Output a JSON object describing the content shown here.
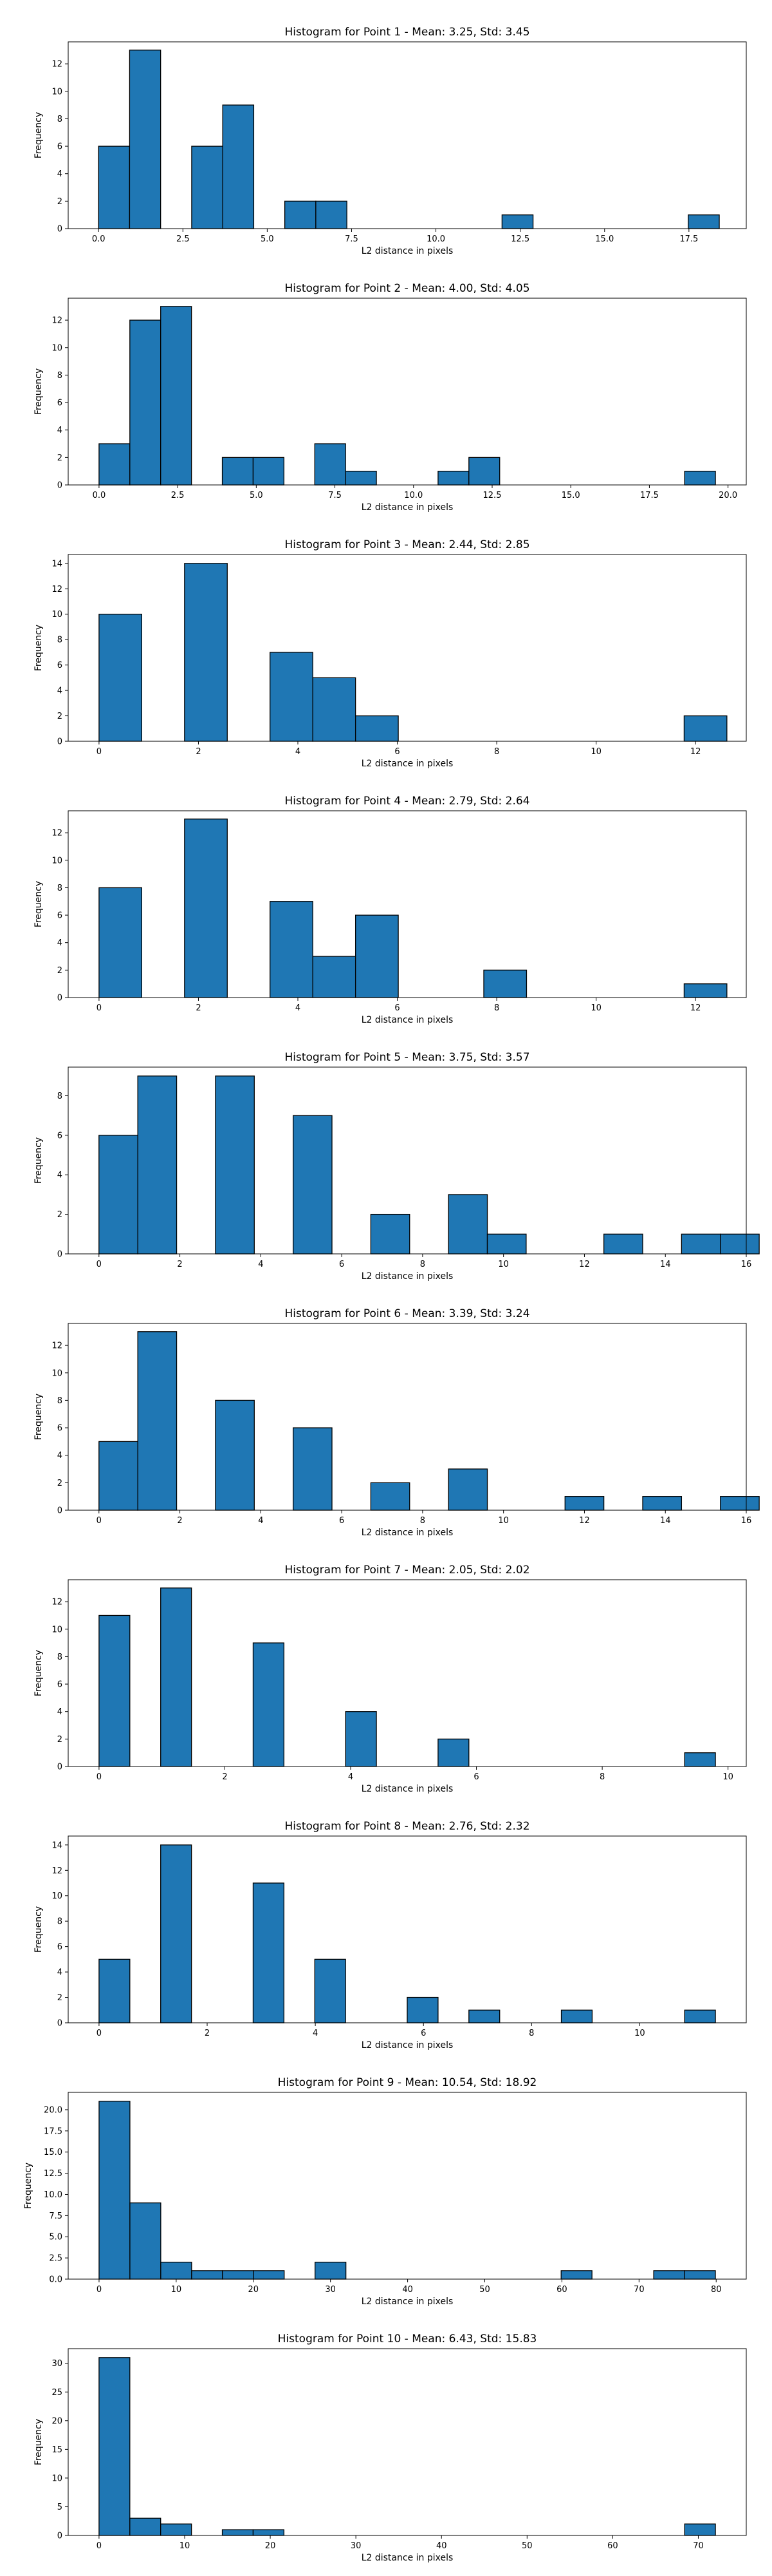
{
  "colors": {
    "bar_fill": "#1f77b4",
    "bar_edge": "#000000",
    "background": "#ffffff"
  },
  "chart_data": [
    {
      "type": "bar",
      "title": "Histogram for Point 1 - Mean: 3.25, Std: 3.45",
      "xlabel": "L2 distance in pixels",
      "ylabel": "Frequency",
      "xlim": [
        -0.9,
        19.2
      ],
      "ylim": [
        0,
        13.6
      ],
      "xticks": [
        0,
        2.5,
        5,
        7.5,
        10,
        12.5,
        15,
        17.5
      ],
      "xtick_labels": [
        "0.0",
        "2.5",
        "5.0",
        "7.5",
        "10.0",
        "12.5",
        "15.0",
        "17.5"
      ],
      "yticks": [
        0,
        2,
        4,
        6,
        8,
        10,
        12
      ],
      "ytick_labels": [
        "0",
        "2",
        "4",
        "6",
        "8",
        "10",
        "12"
      ],
      "bins": [
        {
          "x0": 0.0,
          "x1": 0.92,
          "count": 6
        },
        {
          "x0": 0.92,
          "x1": 1.84,
          "count": 13
        },
        {
          "x0": 2.76,
          "x1": 3.68,
          "count": 6
        },
        {
          "x0": 3.68,
          "x1": 4.6,
          "count": 9
        },
        {
          "x0": 5.52,
          "x1": 6.44,
          "count": 2
        },
        {
          "x0": 6.44,
          "x1": 7.36,
          "count": 2
        },
        {
          "x0": 11.96,
          "x1": 12.88,
          "count": 1
        },
        {
          "x0": 17.48,
          "x1": 18.4,
          "count": 1
        }
      ]
    },
    {
      "type": "bar",
      "title": "Histogram for Point 2 - Mean: 4.00, Std: 4.05",
      "xlabel": "L2 distance in pixels",
      "ylabel": "Frequency",
      "xlim": [
        -0.98,
        20.58
      ],
      "ylim": [
        0,
        13.6
      ],
      "xticks": [
        0,
        2.5,
        5,
        7.5,
        10,
        12.5,
        15,
        17.5,
        20
      ],
      "xtick_labels": [
        "0.0",
        "2.5",
        "5.0",
        "7.5",
        "10.0",
        "12.5",
        "15.0",
        "17.5",
        "20.0"
      ],
      "yticks": [
        0,
        2,
        4,
        6,
        8,
        10,
        12
      ],
      "ytick_labels": [
        "0",
        "2",
        "4",
        "6",
        "8",
        "10",
        "12"
      ],
      "bins": [
        {
          "x0": 0.0,
          "x1": 0.98,
          "count": 3
        },
        {
          "x0": 0.98,
          "x1": 1.96,
          "count": 12
        },
        {
          "x0": 1.96,
          "x1": 2.94,
          "count": 13
        },
        {
          "x0": 3.92,
          "x1": 4.9,
          "count": 2
        },
        {
          "x0": 4.9,
          "x1": 5.88,
          "count": 2
        },
        {
          "x0": 6.86,
          "x1": 7.84,
          "count": 3
        },
        {
          "x0": 7.84,
          "x1": 8.82,
          "count": 1
        },
        {
          "x0": 10.78,
          "x1": 11.76,
          "count": 1
        },
        {
          "x0": 11.76,
          "x1": 12.74,
          "count": 2
        },
        {
          "x0": 18.62,
          "x1": 19.6,
          "count": 1
        }
      ]
    },
    {
      "type": "bar",
      "title": "Histogram for Point 3 - Mean: 2.44, Std: 2.85",
      "xlabel": "L2 distance in pixels",
      "ylabel": "Frequency",
      "xlim": [
        -0.62,
        13.02
      ],
      "ylim": [
        0,
        14.7
      ],
      "xticks": [
        0,
        2,
        4,
        6,
        8,
        10,
        12
      ],
      "xtick_labels": [
        "0",
        "2",
        "4",
        "6",
        "8",
        "10",
        "12"
      ],
      "yticks": [
        0,
        2,
        4,
        6,
        8,
        10,
        12,
        14
      ],
      "ytick_labels": [
        "0",
        "2",
        "4",
        "6",
        "8",
        "10",
        "12",
        "14"
      ],
      "bins": [
        {
          "x0": 0.0,
          "x1": 0.86,
          "count": 10
        },
        {
          "x0": 1.72,
          "x1": 2.58,
          "count": 14
        },
        {
          "x0": 3.44,
          "x1": 4.3,
          "count": 7
        },
        {
          "x0": 4.3,
          "x1": 5.16,
          "count": 5
        },
        {
          "x0": 5.16,
          "x1": 6.02,
          "count": 2
        },
        {
          "x0": 11.77,
          "x1": 12.63,
          "count": 2
        }
      ]
    },
    {
      "type": "bar",
      "title": "Histogram for Point 4 - Mean: 2.79, Std: 2.64",
      "xlabel": "L2 distance in pixels",
      "ylabel": "Frequency",
      "xlim": [
        -0.62,
        13.02
      ],
      "ylim": [
        0,
        13.6
      ],
      "xticks": [
        0,
        2,
        4,
        6,
        8,
        10,
        12
      ],
      "xtick_labels": [
        "0",
        "2",
        "4",
        "6",
        "8",
        "10",
        "12"
      ],
      "yticks": [
        0,
        2,
        4,
        6,
        8,
        10,
        12
      ],
      "ytick_labels": [
        "0",
        "2",
        "4",
        "6",
        "8",
        "10",
        "12"
      ],
      "bins": [
        {
          "x0": 0.0,
          "x1": 0.86,
          "count": 8
        },
        {
          "x0": 1.72,
          "x1": 2.58,
          "count": 13
        },
        {
          "x0": 3.44,
          "x1": 4.3,
          "count": 7
        },
        {
          "x0": 4.3,
          "x1": 5.16,
          "count": 3
        },
        {
          "x0": 5.16,
          "x1": 6.02,
          "count": 6
        },
        {
          "x0": 7.74,
          "x1": 8.6,
          "count": 2
        },
        {
          "x0": 11.77,
          "x1": 12.63,
          "count": 1
        }
      ]
    },
    {
      "type": "bar",
      "title": "Histogram for Point 5 - Mean: 3.75, Std: 3.57",
      "xlabel": "L2 distance in pixels",
      "ylabel": "Frequency",
      "xlim": [
        -0.76,
        16.0
      ],
      "ylim": [
        0,
        9.45
      ],
      "xticks": [
        0,
        2,
        4,
        6,
        8,
        10,
        12,
        14,
        16
      ],
      "xtick_labels": [
        "0",
        "2",
        "4",
        "6",
        "8",
        "10",
        "12",
        "14",
        "16"
      ],
      "yticks": [
        0,
        2,
        4,
        6,
        8
      ],
      "ytick_labels": [
        "0",
        "2",
        "4",
        "6",
        "8"
      ],
      "bins": [
        {
          "x0": 0.0,
          "x1": 0.96,
          "count": 6
        },
        {
          "x0": 0.96,
          "x1": 1.92,
          "count": 9
        },
        {
          "x0": 2.88,
          "x1": 3.84,
          "count": 9
        },
        {
          "x0": 4.8,
          "x1": 5.76,
          "count": 7
        },
        {
          "x0": 6.72,
          "x1": 7.68,
          "count": 2
        },
        {
          "x0": 8.64,
          "x1": 9.6,
          "count": 3
        },
        {
          "x0": 9.6,
          "x1": 10.56,
          "count": 1
        },
        {
          "x0": 12.48,
          "x1": 13.44,
          "count": 1
        },
        {
          "x0": 14.4,
          "x1": 15.36,
          "count": 1
        },
        {
          "x0": 15.36,
          "x1": 16.32,
          "count": 1
        }
      ]
    },
    {
      "type": "bar",
      "title": "Histogram for Point 6 - Mean: 3.39, Std: 3.24",
      "xlabel": "L2 distance in pixels",
      "ylabel": "Frequency",
      "xlim": [
        -0.76,
        16.0
      ],
      "ylim": [
        0,
        13.6
      ],
      "xticks": [
        0,
        2,
        4,
        6,
        8,
        10,
        12,
        14,
        16
      ],
      "xtick_labels": [
        "0",
        "2",
        "4",
        "6",
        "8",
        "10",
        "12",
        "14",
        "16"
      ],
      "yticks": [
        0,
        2,
        4,
        6,
        8,
        10,
        12
      ],
      "ytick_labels": [
        "0",
        "2",
        "4",
        "6",
        "8",
        "10",
        "12"
      ],
      "bins": [
        {
          "x0": 0.0,
          "x1": 0.96,
          "count": 5
        },
        {
          "x0": 0.96,
          "x1": 1.92,
          "count": 13
        },
        {
          "x0": 2.88,
          "x1": 3.84,
          "count": 8
        },
        {
          "x0": 4.8,
          "x1": 5.76,
          "count": 6
        },
        {
          "x0": 6.72,
          "x1": 7.68,
          "count": 2
        },
        {
          "x0": 8.64,
          "x1": 9.6,
          "count": 3
        },
        {
          "x0": 11.52,
          "x1": 12.48,
          "count": 1
        },
        {
          "x0": 13.44,
          "x1": 14.4,
          "count": 1
        },
        {
          "x0": 15.36,
          "x1": 16.32,
          "count": 1
        }
      ]
    },
    {
      "type": "bar",
      "title": "Histogram for Point 7 - Mean: 2.05, Std: 2.02",
      "xlabel": "L2 distance in pixels",
      "ylabel": "Frequency",
      "xlim": [
        -0.49,
        10.29
      ],
      "ylim": [
        0,
        13.6
      ],
      "xticks": [
        0,
        2,
        4,
        6,
        8,
        10
      ],
      "xtick_labels": [
        "0",
        "2",
        "4",
        "6",
        "8",
        "10"
      ],
      "yticks": [
        0,
        2,
        4,
        6,
        8,
        10,
        12
      ],
      "ytick_labels": [
        "0",
        "2",
        "4",
        "6",
        "8",
        "10",
        "12"
      ],
      "bins": [
        {
          "x0": 0.0,
          "x1": 0.49,
          "count": 11
        },
        {
          "x0": 0.98,
          "x1": 1.47,
          "count": 13
        },
        {
          "x0": 2.45,
          "x1": 2.94,
          "count": 9
        },
        {
          "x0": 3.92,
          "x1": 4.41,
          "count": 4
        },
        {
          "x0": 5.39,
          "x1": 5.88,
          "count": 2
        },
        {
          "x0": 9.31,
          "x1": 9.8,
          "count": 1
        }
      ]
    },
    {
      "type": "bar",
      "title": "Histogram for Point 8 - Mean: 2.76, Std: 2.32",
      "xlabel": "L2 distance in pixels",
      "ylabel": "Frequency",
      "xlim": [
        -0.57,
        11.97
      ],
      "ylim": [
        0,
        14.7
      ],
      "xticks": [
        0,
        2,
        4,
        6,
        8,
        10
      ],
      "xtick_labels": [
        "0",
        "2",
        "4",
        "6",
        "8",
        "10"
      ],
      "yticks": [
        0,
        2,
        4,
        6,
        8,
        10,
        12,
        14
      ],
      "ytick_labels": [
        "0",
        "2",
        "4",
        "6",
        "8",
        "10",
        "12",
        "14"
      ],
      "bins": [
        {
          "x0": 0.0,
          "x1": 0.57,
          "count": 5
        },
        {
          "x0": 1.14,
          "x1": 1.71,
          "count": 14
        },
        {
          "x0": 2.85,
          "x1": 3.42,
          "count": 11
        },
        {
          "x0": 3.99,
          "x1": 4.56,
          "count": 5
        },
        {
          "x0": 5.7,
          "x1": 6.27,
          "count": 2
        },
        {
          "x0": 6.84,
          "x1": 7.41,
          "count": 1
        },
        {
          "x0": 8.55,
          "x1": 9.12,
          "count": 1
        },
        {
          "x0": 10.83,
          "x1": 11.4,
          "count": 1
        }
      ]
    },
    {
      "type": "bar",
      "title": "Histogram for Point 9 - Mean: 10.54, Std: 18.92",
      "xlabel": "L2 distance in pixels",
      "ylabel": "Frequency",
      "xlim": [
        -4.0,
        83.9
      ],
      "ylim": [
        0,
        22.05
      ],
      "xticks": [
        0,
        10,
        20,
        30,
        40,
        50,
        60,
        70,
        80
      ],
      "xtick_labels": [
        "0",
        "10",
        "20",
        "30",
        "40",
        "50",
        "60",
        "70",
        "80"
      ],
      "yticks": [
        0,
        2.5,
        5,
        7.5,
        10,
        12.5,
        15,
        17.5,
        20
      ],
      "ytick_labels": [
        "0.0",
        "2.5",
        "5.0",
        "7.5",
        "10.0",
        "12.5",
        "15.0",
        "17.5",
        "20.0"
      ],
      "bins": [
        {
          "x0": 0.0,
          "x1": 4.0,
          "count": 21
        },
        {
          "x0": 4.0,
          "x1": 8.0,
          "count": 9
        },
        {
          "x0": 8.0,
          "x1": 12.0,
          "count": 2
        },
        {
          "x0": 12.0,
          "x1": 16.0,
          "count": 1
        },
        {
          "x0": 16.0,
          "x1": 20.0,
          "count": 1
        },
        {
          "x0": 20.0,
          "x1": 24.0,
          "count": 1
        },
        {
          "x0": 28.0,
          "x1": 32.0,
          "count": 2
        },
        {
          "x0": 59.9,
          "x1": 63.9,
          "count": 1
        },
        {
          "x0": 71.9,
          "x1": 75.9,
          "count": 1
        },
        {
          "x0": 75.9,
          "x1": 79.9,
          "count": 1
        }
      ]
    },
    {
      "type": "bar",
      "title": "Histogram for Point 10 - Mean: 6.43, Std: 15.83",
      "xlabel": "L2 distance in pixels",
      "ylabel": "Frequency",
      "xlim": [
        -3.6,
        75.6
      ],
      "ylim": [
        0,
        32.55
      ],
      "xticks": [
        0,
        10,
        20,
        30,
        40,
        50,
        60,
        70
      ],
      "xtick_labels": [
        "0",
        "10",
        "20",
        "30",
        "40",
        "50",
        "60",
        "70"
      ],
      "yticks": [
        0,
        5,
        10,
        15,
        20,
        25,
        30
      ],
      "ytick_labels": [
        "0",
        "5",
        "10",
        "15",
        "20",
        "25",
        "30"
      ],
      "bins": [
        {
          "x0": 0.0,
          "x1": 3.6,
          "count": 31
        },
        {
          "x0": 3.6,
          "x1": 7.2,
          "count": 3
        },
        {
          "x0": 7.2,
          "x1": 10.8,
          "count": 2
        },
        {
          "x0": 14.4,
          "x1": 18.0,
          "count": 1
        },
        {
          "x0": 18.0,
          "x1": 21.6,
          "count": 1
        },
        {
          "x0": 68.4,
          "x1": 72.0,
          "count": 2
        }
      ]
    }
  ]
}
